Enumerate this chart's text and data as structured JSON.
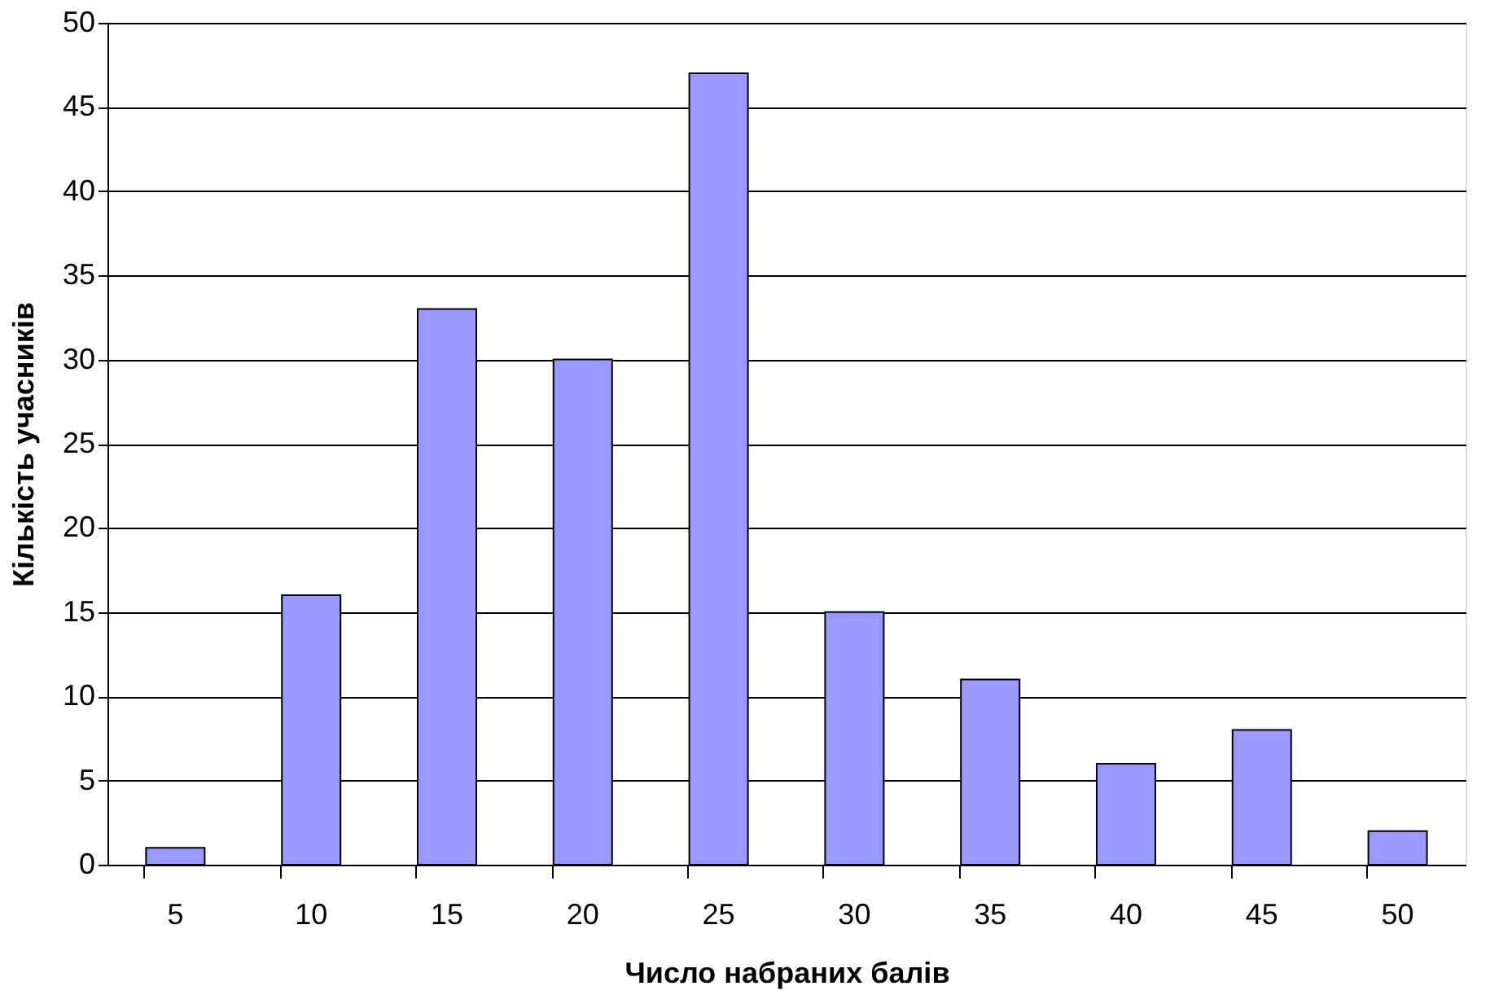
{
  "chart_data": {
    "type": "bar",
    "xlabel": "Число набраних балів",
    "ylabel": "Кількість учасників",
    "categories": [
      "5",
      "10",
      "15",
      "20",
      "25",
      "30",
      "35",
      "40",
      "45",
      "50"
    ],
    "values": [
      1,
      16,
      33,
      30,
      47,
      15,
      11,
      6,
      8,
      2
    ],
    "color": "#9999ff",
    "ylim": [
      0,
      50
    ],
    "yticks": [
      0,
      5,
      10,
      15,
      20,
      25,
      30,
      35,
      40,
      45,
      50
    ],
    "grid": "y"
  }
}
